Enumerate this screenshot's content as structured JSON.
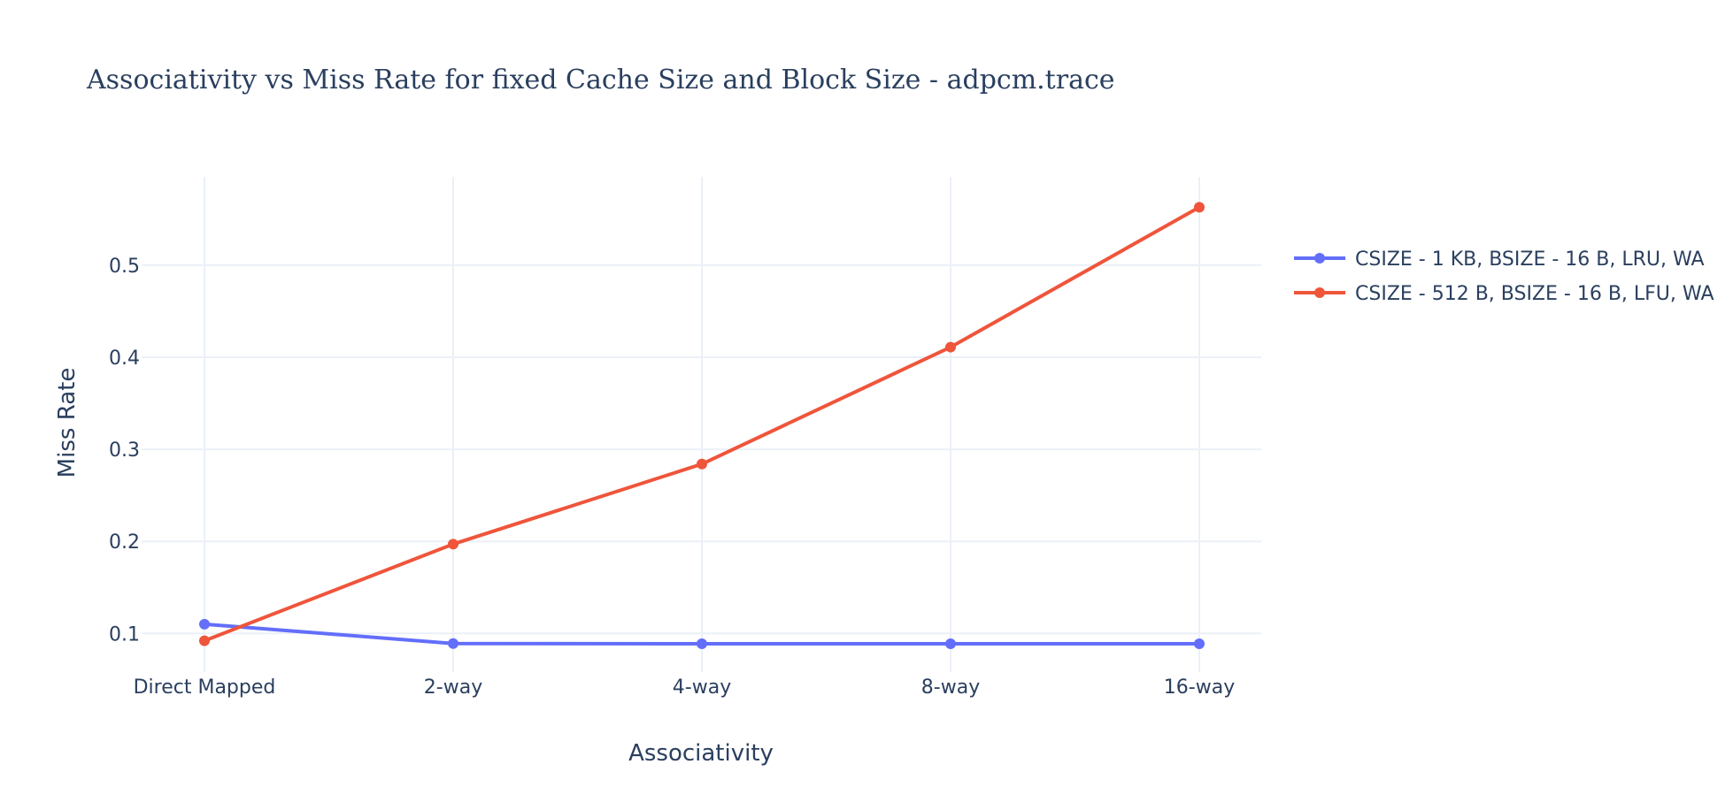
{
  "chart_data": {
    "type": "line",
    "title": "Associativity vs Miss Rate for fixed Cache Size and Block Size - adpcm.trace",
    "xlabel": "Associativity",
    "ylabel": "Miss Rate",
    "categories": [
      "Direct Mapped",
      "2-way",
      "4-way",
      "8-way",
      "16-way"
    ],
    "yticks": [
      0.1,
      0.2,
      0.3,
      0.4,
      0.5
    ],
    "ylim": [
      0.058,
      0.596
    ],
    "grid": true,
    "legend_position": "right",
    "series": [
      {
        "name": "CSIZE - 1 KB, BSIZE - 16 B, LRU, WA",
        "color": "#636efa",
        "values": [
          0.11,
          0.089,
          0.0887,
          0.0887,
          0.0887
        ]
      },
      {
        "name": "CSIZE - 512 B, BSIZE - 16 B, LFU, WA",
        "color": "#ef553b",
        "values": [
          0.092,
          0.197,
          0.284,
          0.411,
          0.563
        ]
      }
    ]
  }
}
